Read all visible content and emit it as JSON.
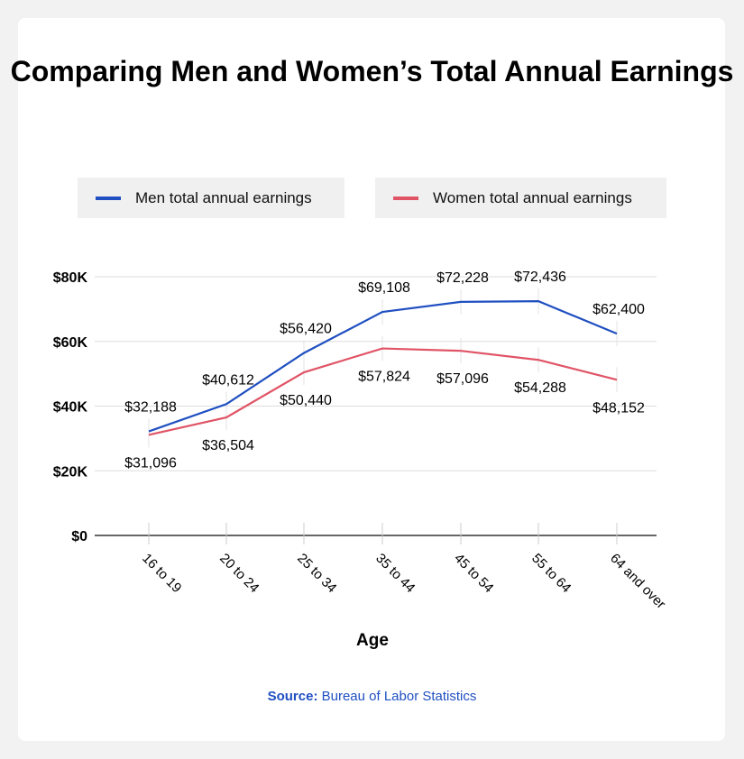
{
  "chart_data": {
    "type": "line",
    "title": "Comparing Men and Women’s Total Annual Earnings",
    "xlabel": "Age",
    "ylabel": "",
    "categories": [
      "16 to 19",
      "20 to 24",
      "25 to 34",
      "35 to 44",
      "45 to 54",
      "55 to 64",
      "64 and over"
    ],
    "ylim": [
      0,
      80000
    ],
    "yticks": [
      0,
      20000,
      40000,
      60000,
      80000
    ],
    "ytick_labels": [
      "$0",
      "$20K",
      "$40K",
      "$60K",
      "$80K"
    ],
    "grid": true,
    "legend_position": "top",
    "series": [
      {
        "name": "Men total annual earnings",
        "color": "#1f4fc1",
        "values": [
          32188,
          40612,
          56420,
          69108,
          72228,
          72436,
          62400
        ],
        "labels": [
          "$32,188",
          "$40,612",
          "$56,420",
          "$69,108",
          "$72,228",
          "$72,436",
          "$62,400"
        ]
      },
      {
        "name": "Women total annual earnings",
        "color": "#e05466",
        "values": [
          31096,
          36504,
          50440,
          57824,
          57096,
          54288,
          48152
        ],
        "labels": [
          "$31,096",
          "$36,504",
          "$50,440",
          "$57,824",
          "$57,096",
          "$54,288",
          "$48,152"
        ]
      }
    ]
  },
  "source": {
    "label": "Source:",
    "text": "Bureau of Labor Statistics"
  }
}
